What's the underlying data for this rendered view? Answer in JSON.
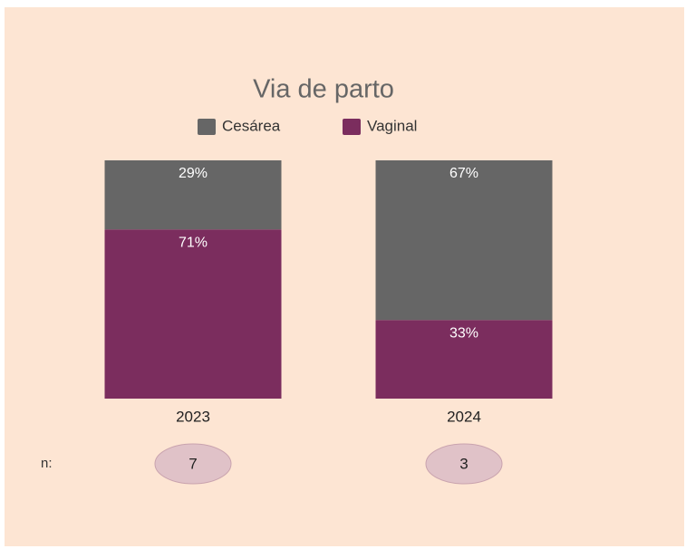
{
  "chart_data": {
    "type": "stacked_bar_100",
    "title": "Via de parto",
    "categories": [
      "2023",
      "2024"
    ],
    "series": [
      {
        "name": "Cesárea",
        "color": "#666666",
        "values": [
          29,
          67
        ],
        "value_labels": [
          "29%",
          "67%"
        ]
      },
      {
        "name": "Vaginal",
        "color": "#7b2d5e",
        "values": [
          71,
          33
        ],
        "value_labels": [
          "71%",
          "33%"
        ]
      }
    ],
    "ylim": [
      0,
      100
    ],
    "n_label": "n:",
    "n": [
      7,
      3
    ]
  }
}
